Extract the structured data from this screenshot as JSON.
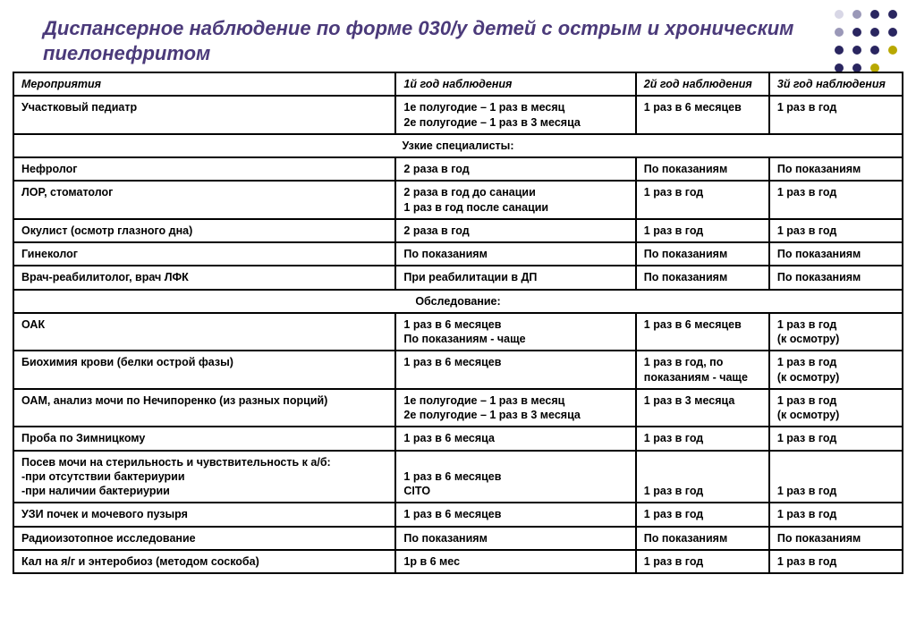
{
  "title": "Диспансерное наблюдение по форме 030/у детей с острым и хроническим пиелонефритом",
  "title_color": "#4b3a7a",
  "title_fontsize": 22,
  "dot_art": {
    "colors": {
      "dark": "#2a2660",
      "mid": "#9a98b8",
      "light": "#d8d7e6",
      "accent": "#b8a800"
    },
    "grid": 4,
    "dot_r": 5
  },
  "table": {
    "border_color": "#000000",
    "font_size": 12.5,
    "col_widths_pct": [
      43,
      27,
      15,
      15
    ],
    "headers": [
      "Мероприятия",
      "1й год наблюдения",
      "2й год наблюдения",
      "3й год наблюдения"
    ],
    "sections": [
      {
        "rows": [
          {
            "cells": [
              "Участковый педиатр",
              "1е полугодие – 1 раз в месяц\n2е полугодие – 1 раз в 3 месяца",
              "1 раз в 6 месяцев",
              "1 раз в год"
            ]
          }
        ]
      },
      {
        "title": "Узкие специалисты:",
        "rows": [
          {
            "cells": [
              "Нефролог",
              "2 раза в год",
              "По показаниям",
              "По показаниям"
            ]
          },
          {
            "cells": [
              "ЛОР, стоматолог",
              "2 раза в год до санации\n1 раз в год после санации",
              "1 раз в год",
              "1 раз в год"
            ]
          },
          {
            "cells": [
              "Окулист (осмотр глазного дна)",
              "2 раза в год",
              "1 раз в год",
              "1 раз в год"
            ]
          },
          {
            "cells": [
              "Гинеколог",
              "По показаниям",
              "По показаниям",
              "По показаниям"
            ]
          },
          {
            "cells": [
              "Врач-реабилитолог, врач ЛФК",
              "При реабилитации в ДП",
              "По показаниям",
              "По показаниям"
            ]
          }
        ]
      },
      {
        "title": "Обследование:",
        "rows": [
          {
            "cells": [
              "ОАК",
              "1 раз в 6 месяцев\nПо показаниям - чаще",
              "1 раз в 6 месяцев",
              "1 раз в год\n(к осмотру)"
            ]
          },
          {
            "cells": [
              "Биохимия крови (белки острой фазы)",
              "1 раз в 6 месяцев",
              "1 раз в год, по показаниям - чаще",
              "1 раз в год\n(к осмотру)"
            ]
          },
          {
            "cells": [
              "ОАМ, анализ мочи по Нечипоренко (из разных порций)",
              "1е полугодие – 1 раз в месяц\n2е полугодие – 1 раз в 3 месяца",
              "1 раз в 3 месяца",
              "1 раз в год\n(к осмотру)"
            ]
          },
          {
            "cells": [
              "Проба по Зимницкому",
              "1 раз в 6 месяца",
              "1 раз в год",
              "1 раз в год"
            ]
          },
          {
            "cells": [
              "Посев мочи на стерильность и чувствительность к а/б:\n-при отсутствии бактериурии\n-при наличии бактериурии",
              "\n1 раз в 6 месяцев\nCITO",
              "\n\n1 раз в год",
              "\n\n1 раз в год"
            ]
          },
          {
            "cells": [
              "УЗИ почек и мочевого пузыря",
              "1 раз в 6 месяцев",
              "1 раз в год",
              "1 раз в год"
            ]
          },
          {
            "cells": [
              "Радиоизотопное исследование",
              "По показаниям",
              "По показаниям",
              "По показаниям"
            ]
          },
          {
            "cells": [
              "Кал на я/г и энтеробиоз (методом соскоба)",
              "1р в 6 мес",
              "1 раз в год",
              "1 раз в год"
            ]
          }
        ]
      }
    ]
  }
}
